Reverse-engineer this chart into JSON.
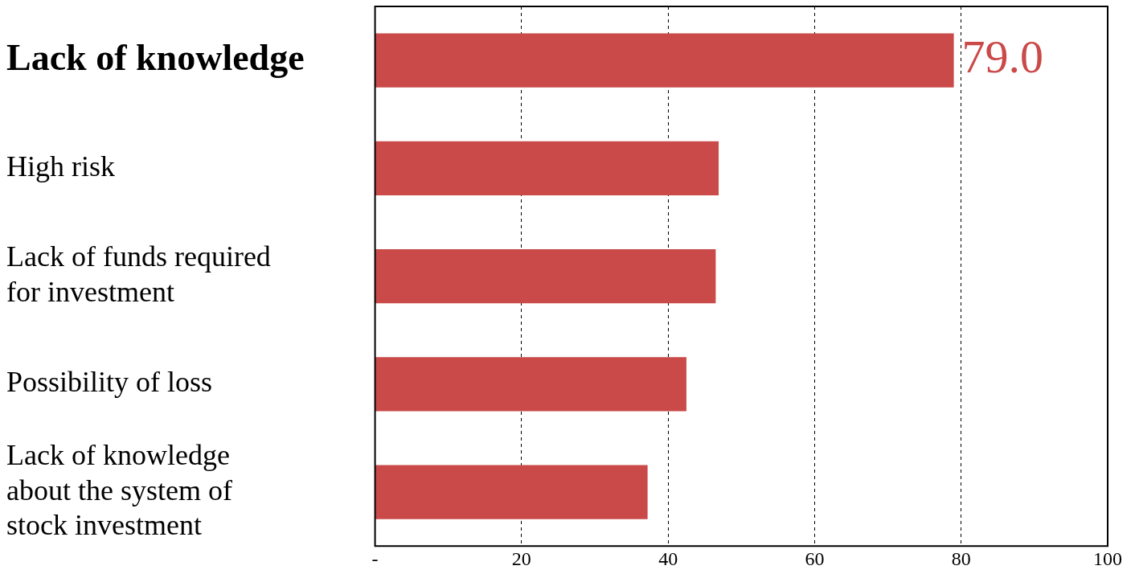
{
  "chart_data": {
    "type": "bar",
    "orientation": "horizontal",
    "categories": [
      "Lack of knowledge",
      "High risk",
      "Lack of funds required for investment",
      "Possibility of loss",
      "Lack of knowledge about the system of stock investment"
    ],
    "values": [
      79.0,
      46.9,
      46.5,
      42.5,
      37.2
    ],
    "value_labels": [
      "79.0",
      null,
      null,
      null,
      null
    ],
    "color": "#c94a48",
    "xlim": [
      0,
      100
    ],
    "xticks": [
      {
        "value": 0,
        "label": "-"
      },
      20,
      40,
      60,
      80,
      100
    ],
    "grid": "x",
    "legend": false
  }
}
